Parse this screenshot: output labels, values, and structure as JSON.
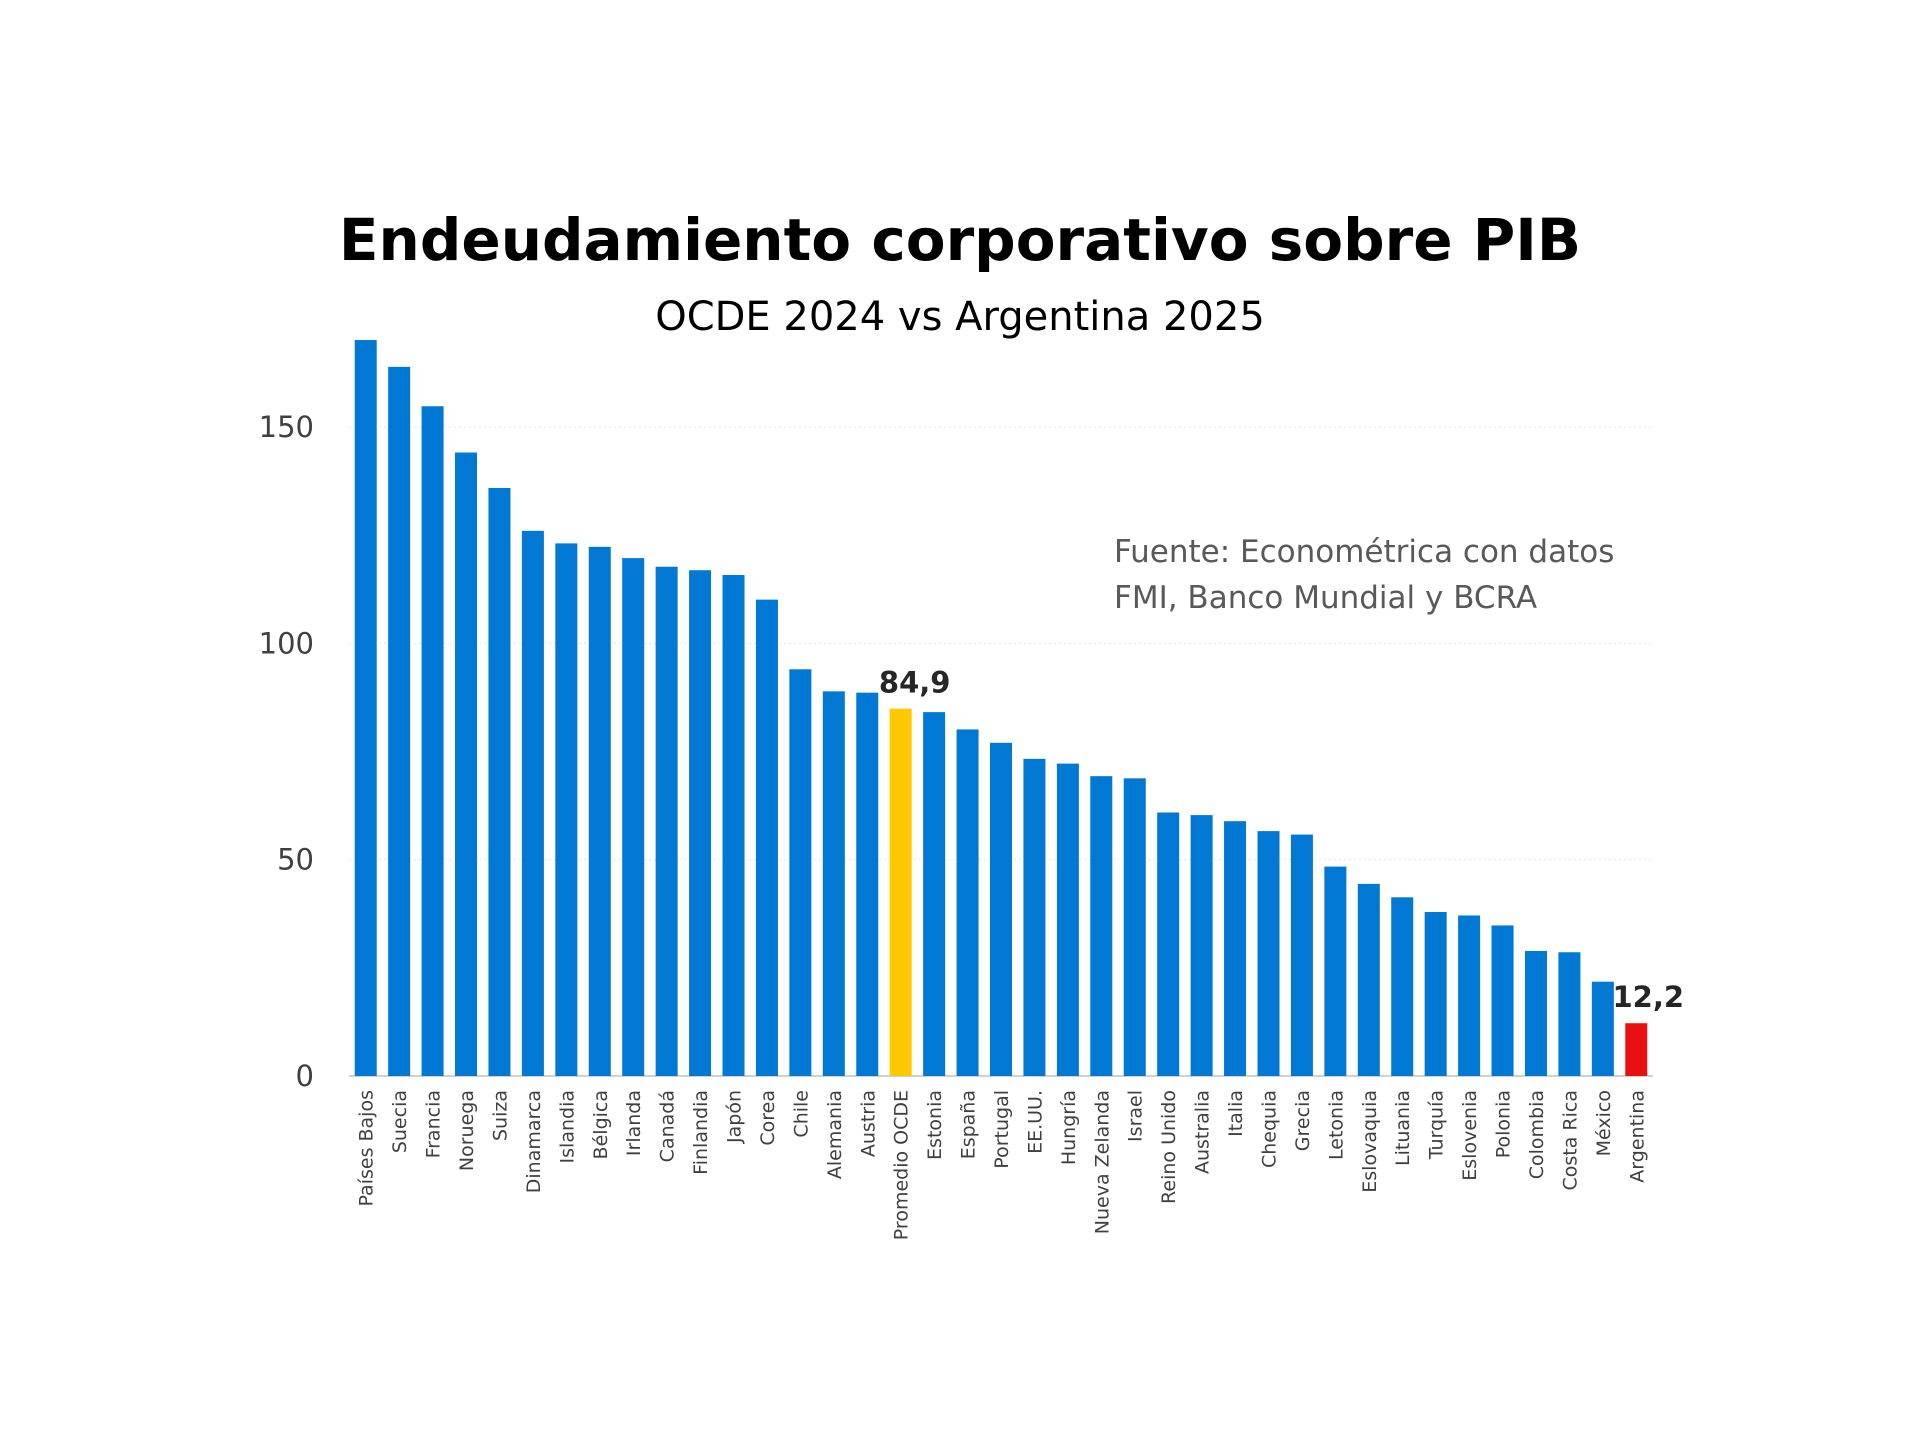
{
  "chart_data": {
    "type": "bar",
    "title": "Endeudamiento corporativo sobre PIB",
    "subtitle": "OCDE 2024 vs Argentina 2025",
    "annotation": [
      "Fuente: Econométrica con datos",
      "FMI, Banco Mundial y BCRA"
    ],
    "xlabel": "",
    "ylabel": "",
    "ylim": [
      0,
      170
    ],
    "yticks": [
      0,
      50,
      100,
      150
    ],
    "grid": true,
    "legend": "none",
    "colors": {
      "default": "#0078D4",
      "average": "#FFC800",
      "argentina": "#E81010"
    },
    "categories": [
      "Países Bajos",
      "Suecia",
      "Francia",
      "Noruega",
      "Suiza",
      "Dinamarca",
      "Islandia",
      "Bélgica",
      "Irlanda",
      "Canadá",
      "Finlandia",
      "Japón",
      "Corea",
      "Chile",
      "Alemania",
      "Austria",
      "Promedio OCDE",
      "Estonia",
      "España",
      "Portugal",
      "EE.UU.",
      "Hungría",
      "Nueva Zelanda",
      "Israel",
      "Reino Unido",
      "Australia",
      "Italia",
      "Chequia",
      "Grecia",
      "Letonia",
      "Eslovaquia",
      "Lituania",
      "Turquía",
      "Eslovenia",
      "Polonia",
      "Colombia",
      "Costa Rica",
      "México",
      "Argentina"
    ],
    "values": [
      170.1,
      163.9,
      154.8,
      144.1,
      135.9,
      126.0,
      123.1,
      122.3,
      119.7,
      117.7,
      116.9,
      115.8,
      110.1,
      94.0,
      88.9,
      88.6,
      84.9,
      84.1,
      80.1,
      77.0,
      73.3,
      72.2,
      69.3,
      68.8,
      60.9,
      60.3,
      58.9,
      56.6,
      55.8,
      48.4,
      44.4,
      41.3,
      37.9,
      37.1,
      34.8,
      28.9,
      28.6,
      21.8,
      12.2
    ],
    "data_labels": {
      "Promedio OCDE": "84,9",
      "Argentina": "12,2"
    }
  }
}
